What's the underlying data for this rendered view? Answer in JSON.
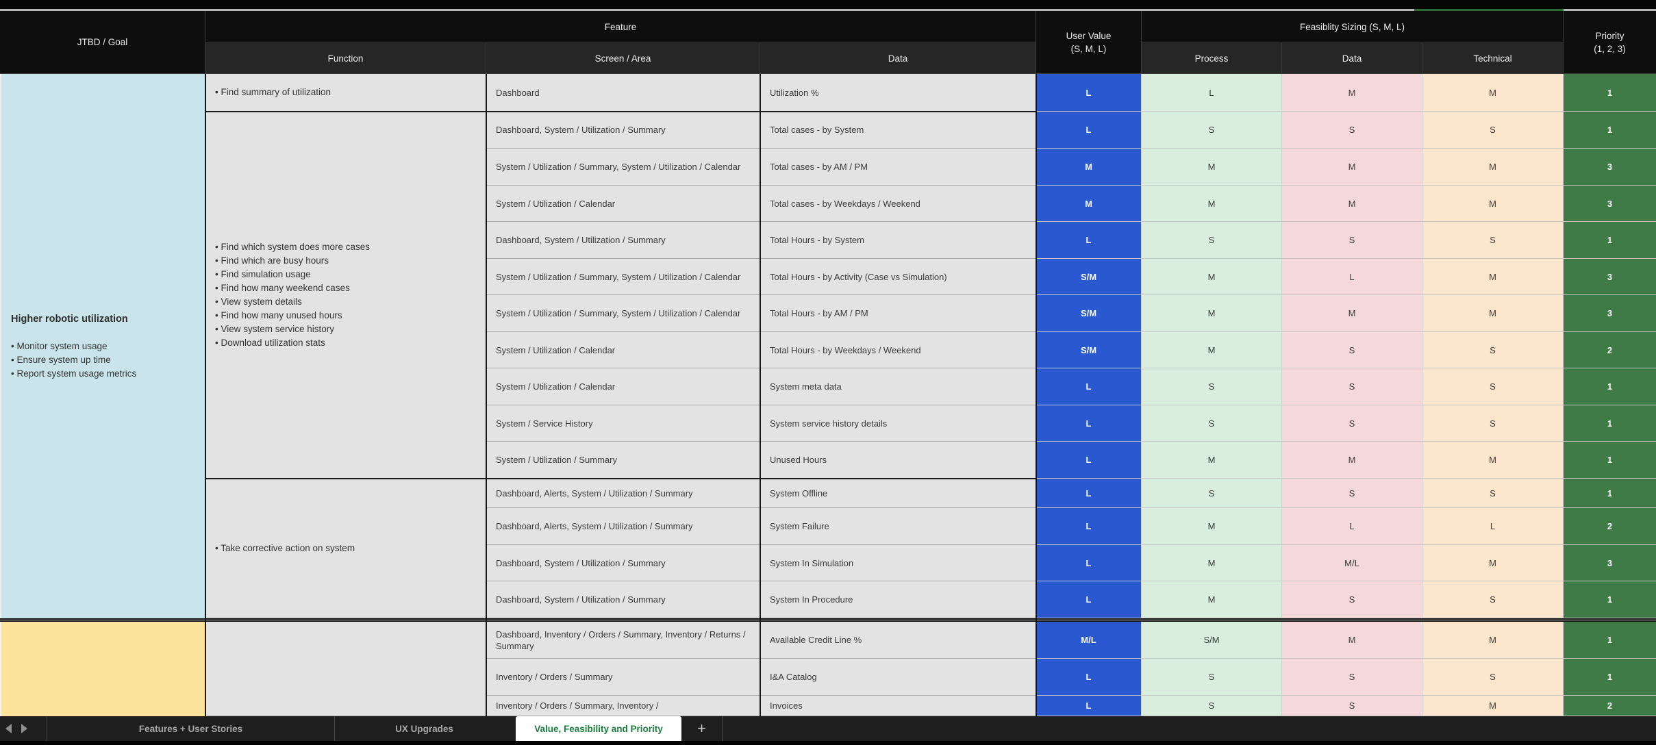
{
  "header": {
    "jtbd": "JTBD / Goal",
    "feature": "Feature",
    "function": "Function",
    "screen_area": "Screen / Area",
    "data": "Data",
    "user_value_line1": "User Value",
    "user_value_line2": "(S, M, L)",
    "feasibility": "Feasiblity Sizing (S, M, L)",
    "process": "Process",
    "data_sizing": "Data",
    "technical": "Technical",
    "priority_line1": "Priority",
    "priority_line2": "(1, 2, 3)"
  },
  "colors": {
    "user_value_blue": "#2a58d0",
    "process_green": "#d9eedd",
    "data_pink": "#f5d8da",
    "technical_peach": "#fce5cd",
    "priority_green": "#3f7b46",
    "jtbd_section1_cyan": "#c9e5eb",
    "jtbd_section2_yellow": "#fbe39b"
  },
  "sections": [
    {
      "jtbd": {
        "title": "Higher robotic utilization",
        "bullets": [
          "Monitor system usage",
          "Ensure system up time",
          "Report system usage metrics"
        ],
        "bg": "#c9e5eb"
      },
      "groups": [
        {
          "function_bullets": [
            "Find summary of utilization"
          ],
          "rows": [
            {
              "screen": "Dashboard",
              "data": "Utilization %",
              "user_value": "L",
              "process": "L",
              "data_sizing": "M",
              "technical": "M",
              "priority": "1"
            }
          ]
        },
        {
          "function_bullets": [
            "Find which system does more cases",
            "Find which are busy hours",
            "Find simulation usage",
            "Find how many weekend cases",
            "View system details",
            "Find how many unused hours",
            "View system service history",
            "Download utilization stats"
          ],
          "rows": [
            {
              "screen": "Dashboard, System / Utilization / Summary",
              "data": "Total cases - by System",
              "user_value": "L",
              "process": "S",
              "data_sizing": "S",
              "technical": "S",
              "priority": "1"
            },
            {
              "screen": "System / Utilization / Summary, System / Utilization / Calendar",
              "data": "Total cases - by AM / PM",
              "user_value": "M",
              "process": "M",
              "data_sizing": "M",
              "technical": "M",
              "priority": "3"
            },
            {
              "screen": "System / Utilization / Calendar",
              "data": "Total cases - by Weekdays / Weekend",
              "user_value": "M",
              "process": "M",
              "data_sizing": "M",
              "technical": "M",
              "priority": "3"
            },
            {
              "screen": "Dashboard, System / Utilization / Summary",
              "data": "Total Hours - by System",
              "user_value": "L",
              "process": "S",
              "data_sizing": "S",
              "technical": "S",
              "priority": "1"
            },
            {
              "screen": "System / Utilization / Summary, System / Utilization / Calendar",
              "data": "Total Hours - by Activity (Case vs Simulation)",
              "user_value": "S/M",
              "process": "M",
              "data_sizing": "L",
              "technical": "M",
              "priority": "3"
            },
            {
              "screen": "System / Utilization / Summary, System / Utilization / Calendar",
              "data": "Total Hours - by AM / PM",
              "user_value": "S/M",
              "process": "M",
              "data_sizing": "M",
              "technical": "M",
              "priority": "3"
            },
            {
              "screen": "System / Utilization / Calendar",
              "data": "Total Hours - by Weekdays / Weekend",
              "user_value": "S/M",
              "process": "M",
              "data_sizing": "S",
              "technical": "S",
              "priority": "2"
            },
            {
              "screen": "System / Utilization / Calendar",
              "data": "System meta data",
              "user_value": "L",
              "process": "S",
              "data_sizing": "S",
              "technical": "S",
              "priority": "1"
            },
            {
              "screen": "System / Service History",
              "data": "System service history details",
              "user_value": "L",
              "process": "S",
              "data_sizing": "S",
              "technical": "S",
              "priority": "1"
            },
            {
              "screen": "System / Utilization / Summary",
              "data": "Unused Hours",
              "user_value": "L",
              "process": "M",
              "data_sizing": "M",
              "technical": "M",
              "priority": "1"
            }
          ]
        },
        {
          "function_bullets": [
            "Take corrective action on system"
          ],
          "rows": [
            {
              "screen": "Dashboard, Alerts, System / Utilization / Summary",
              "data": "System Offline",
              "user_value": "L",
              "process": "S",
              "data_sizing": "S",
              "technical": "S",
              "priority": "1"
            },
            {
              "screen": "Dashboard, Alerts, System / Utilization / Summary",
              "data": "System Failure",
              "user_value": "L",
              "process": "M",
              "data_sizing": "L",
              "technical": "L",
              "priority": "2"
            },
            {
              "screen": "Dashboard, System / Utilization / Summary",
              "data": "System In Simulation",
              "user_value": "L",
              "process": "M",
              "data_sizing": "M/L",
              "technical": "M",
              "priority": "3"
            },
            {
              "screen": "Dashboard, System / Utilization / Summary",
              "data": "System In Procedure",
              "user_value": "L",
              "process": "M",
              "data_sizing": "S",
              "technical": "S",
              "priority": "1"
            }
          ]
        }
      ]
    },
    {
      "jtbd": {
        "title": "",
        "bullets": [],
        "bg": "#fbe39b"
      },
      "groups": [
        {
          "function_bullets": [],
          "rows": [
            {
              "screen": "Dashboard, Inventory / Orders / Summary, Inventory / Returns / Summary",
              "data": "Available Credit Line %",
              "user_value": "M/L",
              "process": "S/M",
              "data_sizing": "M",
              "technical": "M",
              "priority": "1"
            },
            {
              "screen": "Inventory / Orders / Summary",
              "data": "I&A Catalog",
              "user_value": "L",
              "process": "S",
              "data_sizing": "S",
              "technical": "S",
              "priority": "1"
            },
            {
              "screen": "Inventory / Orders / Summary, Inventory /",
              "data": "Invoices",
              "user_value": "L",
              "process": "S",
              "data_sizing": "S",
              "technical": "M",
              "priority": "2"
            }
          ]
        }
      ]
    }
  ],
  "tabbar": {
    "tabs": [
      {
        "label": "Features + User Stories",
        "active": false
      },
      {
        "label": "UX Upgrades",
        "active": false
      },
      {
        "label": "Value, Feasibility and Priority",
        "active": true
      }
    ],
    "add_label": "+"
  }
}
